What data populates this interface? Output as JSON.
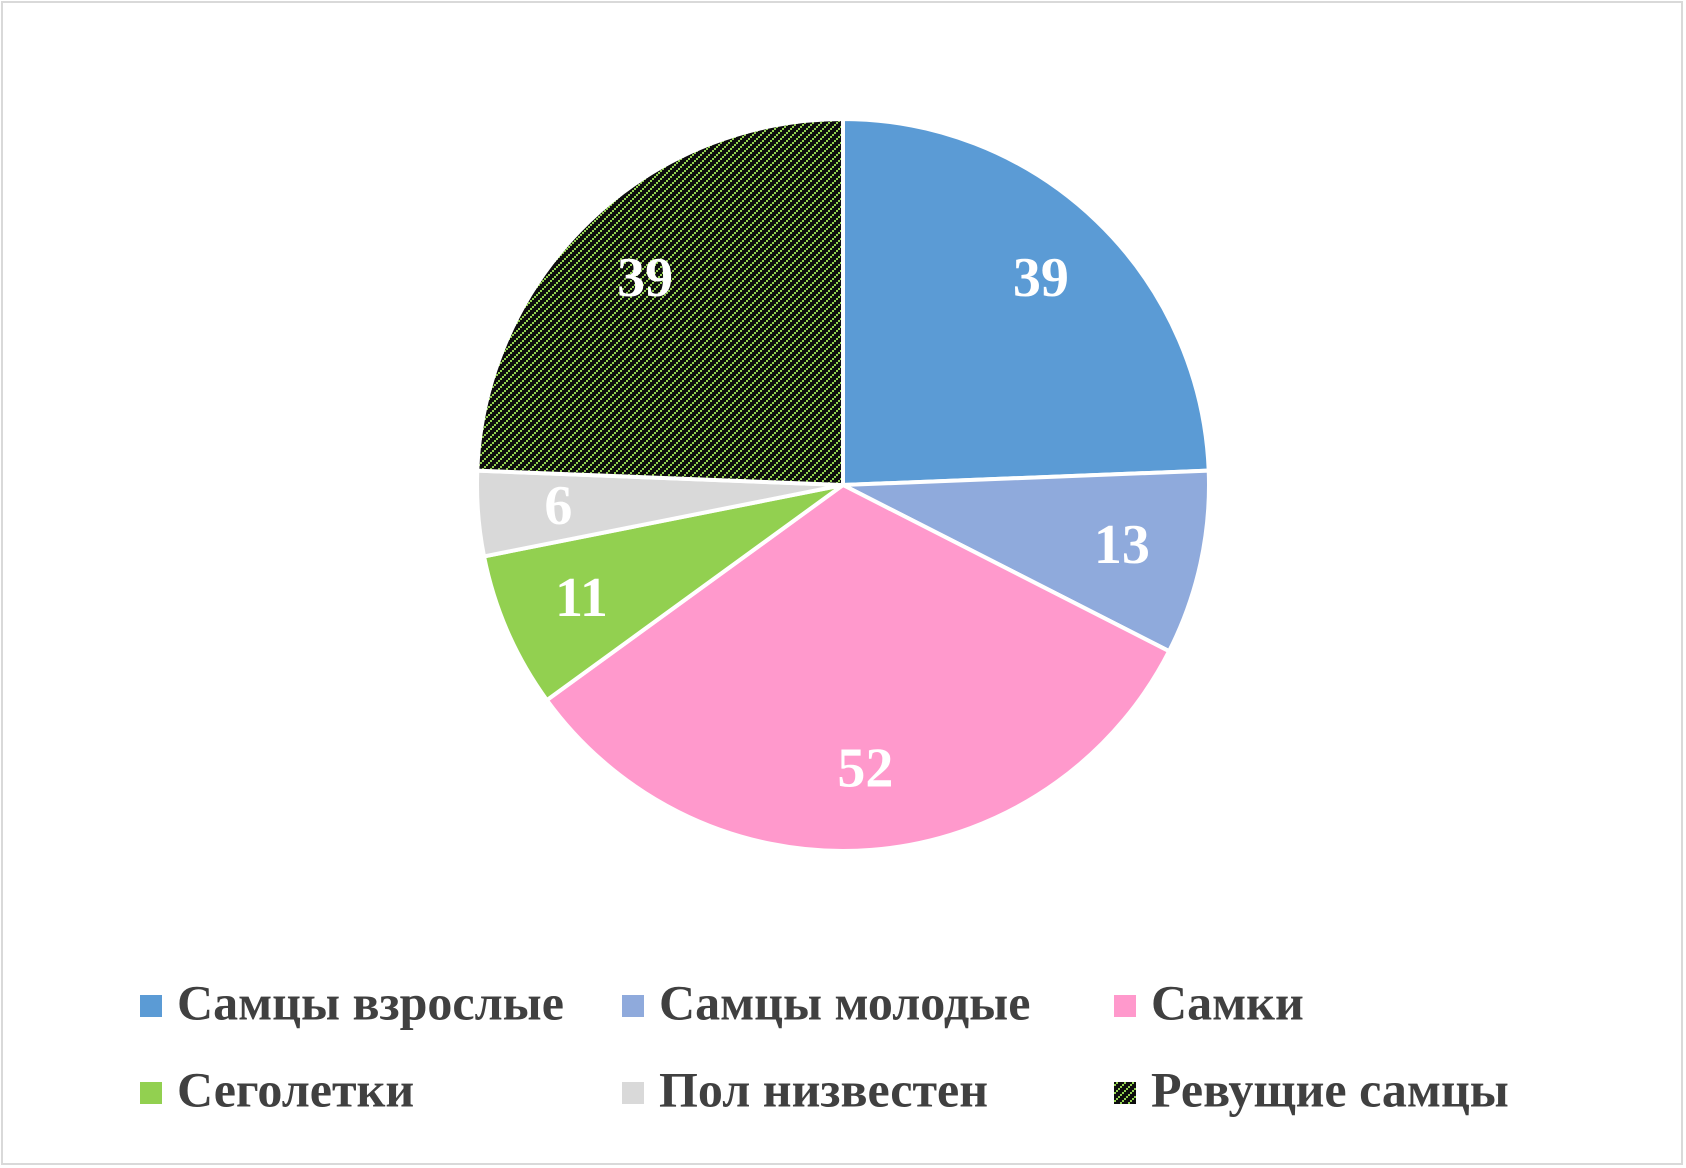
{
  "chart_data": {
    "type": "pie",
    "categories": [
      "Самцы взрослые",
      "Самцы молодые",
      "Самки",
      "Сеголетки",
      "Пол низвестен",
      "Ревущие самцы"
    ],
    "values": [
      39,
      13,
      52,
      11,
      6,
      39
    ],
    "colors": [
      "#5b9bd5",
      "#8faadc",
      "#ff99cc",
      "#92d050",
      "#d9d9d9",
      "#92d050"
    ],
    "pattern_background": [
      null,
      null,
      null,
      null,
      null,
      "#0d0d0d"
    ],
    "legend": "bottom"
  }
}
